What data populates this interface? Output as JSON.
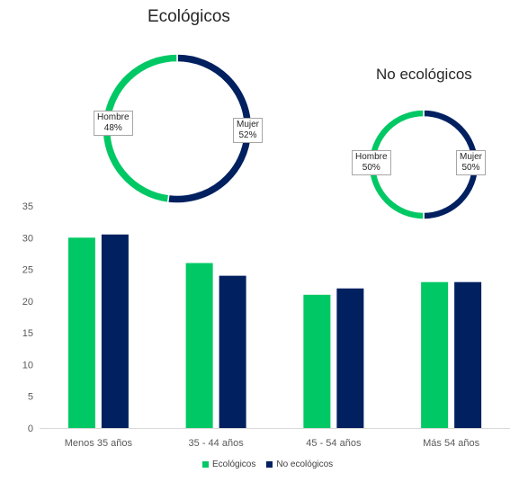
{
  "colors": {
    "eco": "#00c864",
    "noeco": "#002060"
  },
  "donuts": [
    {
      "title": "Ecológicos",
      "slices": [
        {
          "label": "Mujer",
          "pct_text": "52%",
          "value": 52,
          "color_key": "noeco"
        },
        {
          "label": "Hombre",
          "pct_text": "48%",
          "value": 48,
          "color_key": "eco"
        }
      ]
    },
    {
      "title": "No ecológicos",
      "slices": [
        {
          "label": "Mujer",
          "pct_text": "50%",
          "value": 50,
          "color_key": "noeco"
        },
        {
          "label": "Hombre",
          "pct_text": "50%",
          "value": 50,
          "color_key": "eco"
        }
      ]
    }
  ],
  "chart_data": [
    {
      "type": "pie",
      "title": "Ecológicos",
      "categories": [
        "Mujer",
        "Hombre"
      ],
      "values": [
        52,
        48
      ]
    },
    {
      "type": "pie",
      "title": "No ecológicos",
      "categories": [
        "Mujer",
        "Hombre"
      ],
      "values": [
        50,
        50
      ]
    },
    {
      "type": "bar",
      "categories": [
        "Menos 35 años",
        "35 - 44 años",
        "45 - 54 años",
        "Más 54 años"
      ],
      "series": [
        {
          "name": "Ecológicos",
          "values": [
            30,
            26,
            21,
            23
          ]
        },
        {
          "name": "No ecológicos",
          "values": [
            30.5,
            24,
            22,
            23
          ]
        }
      ],
      "ylim": [
        0,
        35
      ],
      "yticks": [
        0,
        5,
        10,
        15,
        20,
        25,
        30,
        35
      ],
      "legend": "bottom",
      "grid": false
    }
  ],
  "legend": {
    "items": [
      "Ecológicos",
      "No ecológicos"
    ]
  }
}
